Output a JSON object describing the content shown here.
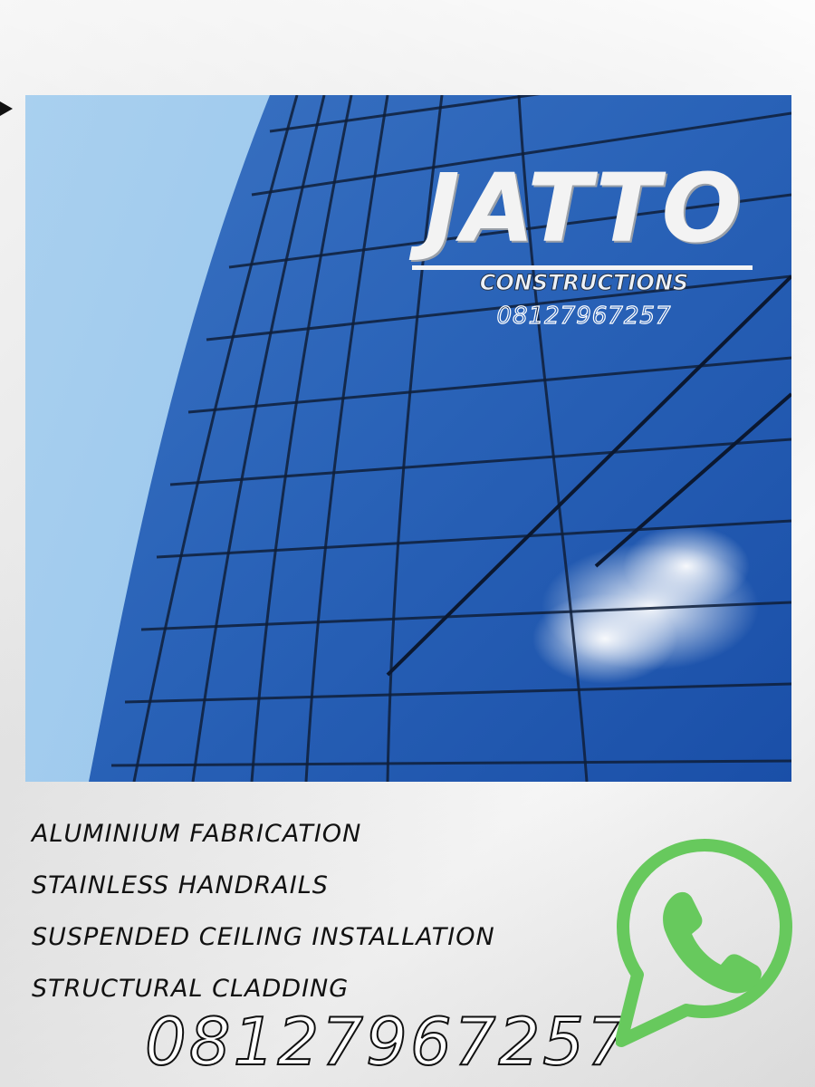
{
  "brand": {
    "name": "JATTO",
    "tagline": "CONSTRUCTIONS",
    "phone": "08127967257"
  },
  "services": [
    "Aluminium fabrication",
    "Stainless handrails",
    "Suspended ceiling installation",
    "Structural cladding"
  ],
  "contact": {
    "phone": "08127967257",
    "icon": "whatsapp-icon"
  },
  "colors": {
    "whatsapp_green": "#67c95d",
    "sky_light": "#b9d9f2",
    "glass_blue": "#2f6fc4"
  }
}
